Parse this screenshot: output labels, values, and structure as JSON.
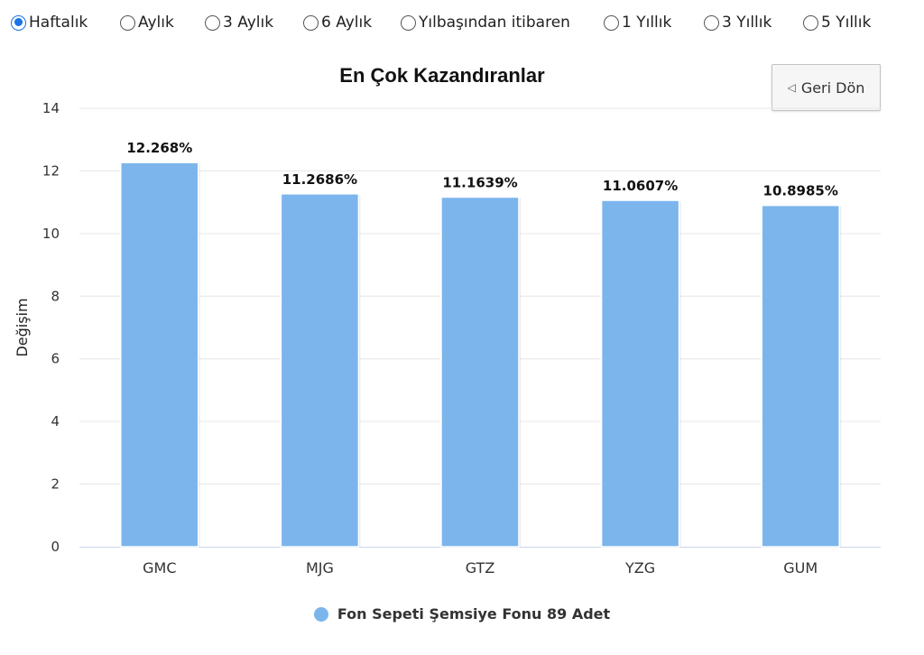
{
  "periods": [
    {
      "label": "Haftalık",
      "checked": true
    },
    {
      "label": "Aylık",
      "checked": false
    },
    {
      "label": "3 Aylık",
      "checked": false
    },
    {
      "label": "6 Aylık",
      "checked": false
    },
    {
      "label": "Yılbaşından itibaren",
      "checked": false
    },
    {
      "label": "1 Yıllık",
      "checked": false
    },
    {
      "label": "3 Yıllık",
      "checked": false
    },
    {
      "label": "5 Yıllık",
      "checked": false
    }
  ],
  "back_button": {
    "label": "Geri Dön"
  },
  "colors": {
    "bar": "#7cb5ec",
    "grid": "#e6e6e6",
    "axis": "#ccd6eb"
  },
  "chart_data": {
    "type": "bar",
    "title": "En Çok Kazandıranlar",
    "xlabel": "",
    "ylabel": "Değişim",
    "categories": [
      "GMC",
      "MJG",
      "GTZ",
      "YZG",
      "GUM"
    ],
    "series": [
      {
        "name": "Fon Sepeti Şemsiye Fonu 89 Adet",
        "values": [
          12.268,
          11.2686,
          11.1639,
          11.0607,
          10.8985
        ],
        "data_labels": [
          "12.268%",
          "11.2686%",
          "11.1639%",
          "11.0607%",
          "10.8985%"
        ]
      }
    ],
    "ylim": [
      0,
      14
    ],
    "yticks": [
      0,
      2,
      4,
      6,
      8,
      10,
      12,
      14
    ],
    "grid": true,
    "legend": "bottom"
  }
}
